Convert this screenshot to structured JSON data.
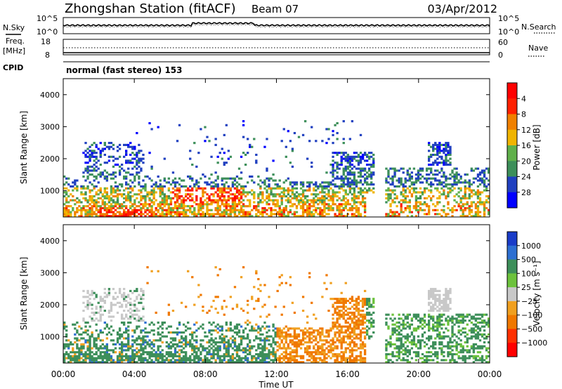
{
  "header": {
    "station": "Zhongshan Station (fitACF)",
    "beam": "Beam 07",
    "date": "03/Apr/2012",
    "mode": "normal (fast stereo) 153"
  },
  "left_labels": {
    "nsky": "N.Sky",
    "freq": "Freq.",
    "mhz": "[MHz]",
    "cpid": "CPID"
  },
  "right_labels": {
    "nsearch": "N.Search",
    "nave": "Nave"
  },
  "noise_panel": {
    "ytick_top": "10^5",
    "ytick_bottom": "10^0",
    "rtick_top": "10^5",
    "rtick_bottom": "10^0"
  },
  "freq_panel": {
    "ytick_top": "18",
    "ytick_bottom": "8",
    "rtick_top": "60",
    "rtick_bottom": "0"
  },
  "chart_data": [
    {
      "type": "heatmap",
      "name": "power",
      "ylabel": "Slant Range [km]",
      "yticks": [
        "1000",
        "2000",
        "3000",
        "4000"
      ],
      "ylim": [
        180,
        4500
      ],
      "xlim_hours": [
        0,
        24
      ],
      "colorbar": {
        "label": "Power [dB]",
        "ticks": [
          "4",
          "8",
          "12",
          "16",
          "20",
          "24",
          "28"
        ],
        "colors": [
          "#0000ff",
          "#2040c0",
          "#3d8f5a",
          "#5fb04a",
          "#f0b400",
          "#f08000",
          "#ff2000",
          "#ff0000"
        ]
      }
    },
    {
      "type": "heatmap",
      "name": "velocity",
      "ylabel": "Slant Range [km]",
      "yticks": [
        "1000",
        "2000",
        "3000",
        "4000"
      ],
      "ylim": [
        180,
        4500
      ],
      "xlim_hours": [
        0,
        24
      ],
      "xticks": [
        "00:00",
        "04:00",
        "08:00",
        "12:00",
        "16:00",
        "20:00",
        "00:00"
      ],
      "xlabel": "Time UT",
      "colorbar": {
        "label": "Velocity [m s⁻¹]",
        "ticks": [
          "1000",
          "500",
          "100",
          "25",
          "−25",
          "−100",
          "−500",
          "−1000"
        ],
        "colors": [
          "#1a3cc8",
          "#2d6fd2",
          "#3d8f5a",
          "#6cc23c",
          "#c8c8c8",
          "#f0a020",
          "#f07800",
          "#ff3000",
          "#ff0000"
        ]
      }
    }
  ]
}
